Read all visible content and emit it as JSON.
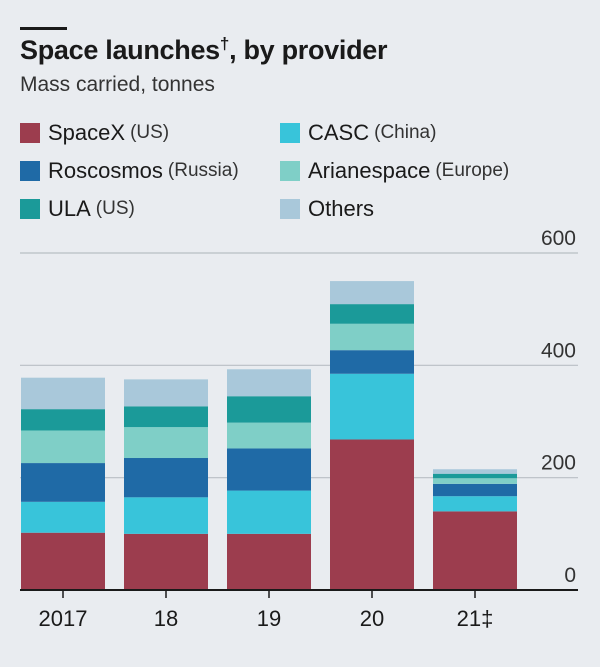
{
  "header": {
    "title": "Space launches",
    "title_mark": "†",
    "title_suffix": ", by provider",
    "subtitle": "Mass carried, tonnes"
  },
  "legend": [
    {
      "name": "SpaceX",
      "region": "(US)",
      "color": "#9c3d4e"
    },
    {
      "name": "Roscosmos",
      "region": "(Russia)",
      "color": "#1f6aa6"
    },
    {
      "name": "ULA",
      "region": "(US)",
      "color": "#1b9a99"
    },
    {
      "name": "CASC",
      "region": "(China)",
      "color": "#38c4da"
    },
    {
      "name": "Arianespace",
      "region": "(Europe)",
      "color": "#7fcfc7"
    },
    {
      "name": "Others",
      "region": "",
      "color": "#a9c8da"
    }
  ],
  "chart_data": {
    "type": "bar",
    "stacked": true,
    "categories": [
      "2017",
      "18",
      "19",
      "20",
      "21‡"
    ],
    "ylim": [
      0,
      600
    ],
    "yticks": [
      "0",
      "200",
      "400",
      "600"
    ],
    "y_axis_position": "right",
    "grid": true,
    "legend_position": "top",
    "series": [
      {
        "name": "SpaceX (US)",
        "color": "#9c3d4e",
        "values": [
          102,
          100,
          100,
          268,
          140
        ]
      },
      {
        "name": "CASC (China)",
        "color": "#38c4da",
        "values": [
          55,
          65,
          77,
          117,
          27
        ]
      },
      {
        "name": "Roscosmos (Russia)",
        "color": "#1f6aa6",
        "values": [
          69,
          70,
          75,
          42,
          22
        ]
      },
      {
        "name": "Arianespace (Europe)",
        "color": "#7fcfc7",
        "values": [
          58,
          55,
          46,
          47,
          10
        ]
      },
      {
        "name": "ULA (US)",
        "color": "#1b9a99",
        "values": [
          38,
          37,
          47,
          35,
          8
        ]
      },
      {
        "name": "Others",
        "color": "#a9c8da",
        "values": [
          56,
          48,
          48,
          41,
          8
        ]
      }
    ]
  }
}
